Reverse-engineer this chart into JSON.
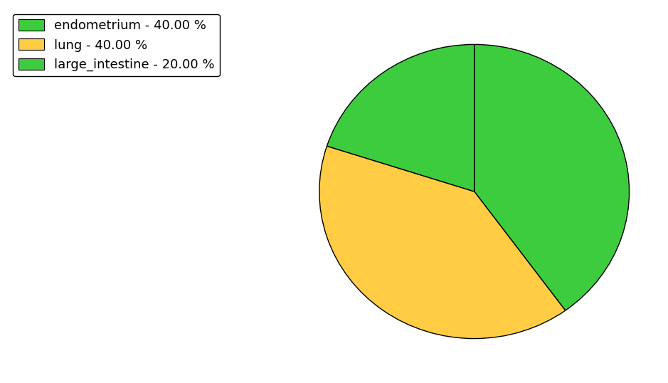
{
  "labels": [
    "endometrium",
    "lung",
    "large_intestine"
  ],
  "values": [
    40.0,
    40.0,
    20.0
  ],
  "colors": [
    "#3dcc3d",
    "#ffcc44",
    "#3dcc3d"
  ],
  "legend_labels": [
    "endometrium - 40.00 %",
    "lung - 40.00 %",
    "large_intestine - 20.00 %"
  ],
  "legend_colors": [
    "#3dcc3d",
    "#ffcc44",
    "#3dcc3d"
  ],
  "startangle": 90,
  "figsize": [
    9.39,
    5.38
  ],
  "dpi": 100
}
